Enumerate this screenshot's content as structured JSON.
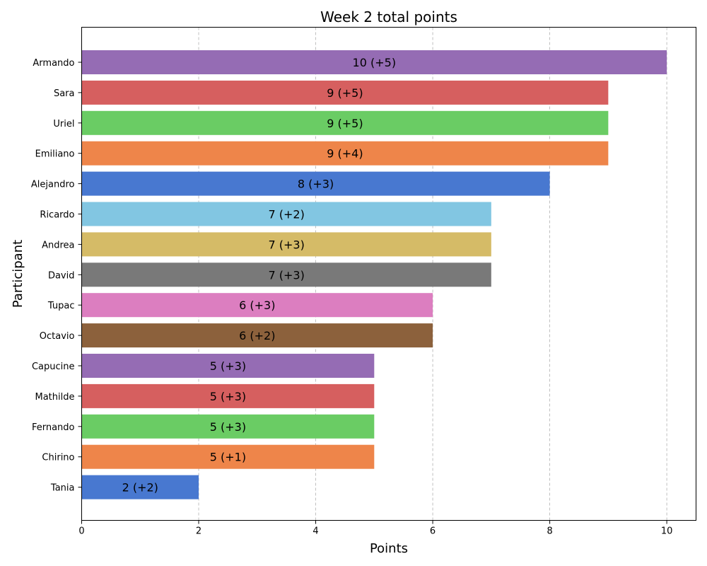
{
  "chart_data": {
    "type": "bar",
    "orientation": "horizontal",
    "title": "Week 2 total points",
    "xlabel": "Points",
    "ylabel": "Participant",
    "xlim": [
      0,
      10.5
    ],
    "xticks": [
      0,
      2,
      4,
      6,
      8,
      10
    ],
    "grid": "x-dashed",
    "categories": [
      "Armando",
      "Sara",
      "Uriel",
      "Emiliano",
      "Alejandro",
      "Ricardo",
      "Andrea",
      "David",
      "Tupac",
      "Octavio",
      "Capucine",
      "Mathilde",
      "Fernando",
      "Chirino",
      "Tania"
    ],
    "values": [
      10,
      9,
      9,
      9,
      8,
      7,
      7,
      7,
      6,
      6,
      5,
      5,
      5,
      5,
      2
    ],
    "labels": [
      "10 (+5)",
      "9 (+5)",
      "9 (+5)",
      "9 (+4)",
      "8 (+3)",
      "7 (+2)",
      "7 (+3)",
      "7 (+3)",
      "6 (+3)",
      "6 (+2)",
      "5 (+3)",
      "5 (+3)",
      "5 (+3)",
      "5 (+1)",
      "2 (+2)"
    ],
    "colors": [
      "#956cb4",
      "#d65f5f",
      "#6acc64",
      "#ee854a",
      "#4878d0",
      "#82c6e2",
      "#d5bb67",
      "#797979",
      "#dc7ec0",
      "#8c613c",
      "#956cb4",
      "#d65f5f",
      "#6acc64",
      "#ee854a",
      "#4878d0"
    ]
  }
}
